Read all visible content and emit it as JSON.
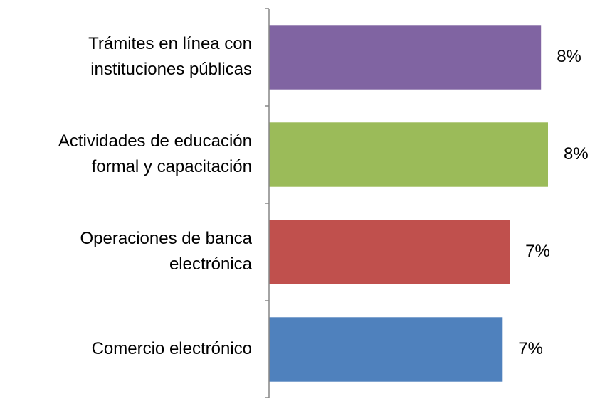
{
  "chart_data": {
    "type": "bar",
    "orientation": "horizontal",
    "categories": [
      [
        "Trámites en línea con",
        "instituciones públicas"
      ],
      [
        "Actividades de educación",
        "formal y capacitación"
      ],
      [
        "Operaciones de banca",
        "electrónica"
      ],
      [
        "Comercio electrónico"
      ]
    ],
    "values": [
      7.8,
      8.0,
      6.9,
      6.7
    ],
    "value_labels": [
      "8%",
      "8%",
      "7%",
      "7%"
    ],
    "colors": [
      "#8064a2",
      "#9bbb59",
      "#c0504d",
      "#4f81bd"
    ],
    "xlim": [
      0,
      9
    ]
  }
}
